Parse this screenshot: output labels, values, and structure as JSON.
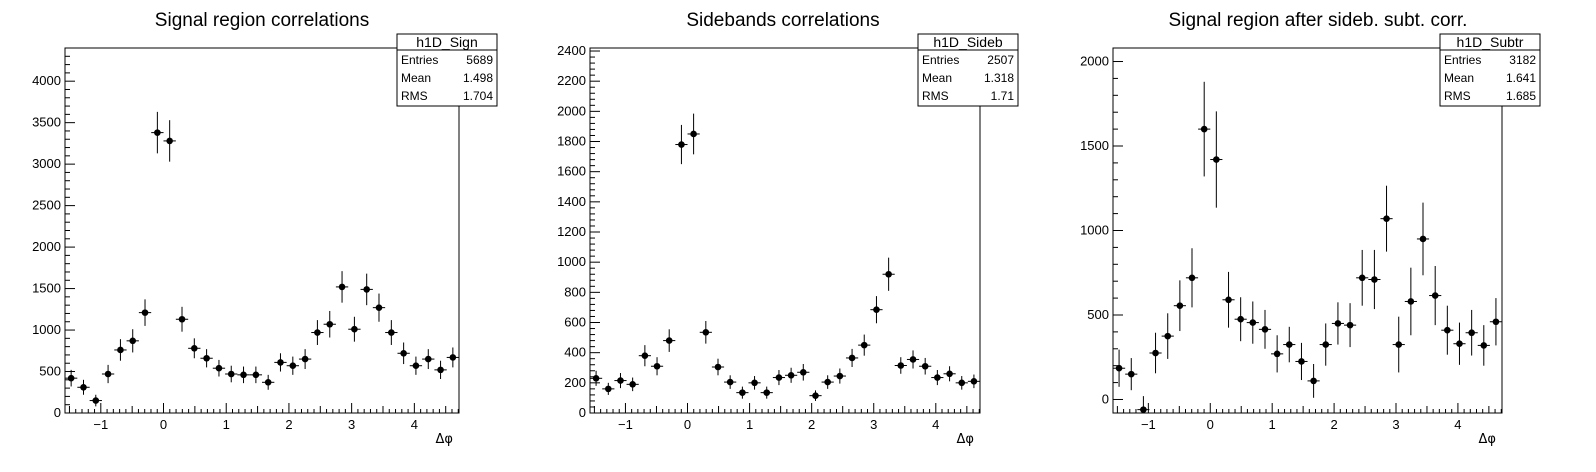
{
  "chart_data": [
    {
      "type": "scatter",
      "title": "Signal region correlations",
      "xlabel": "Δφ",
      "ylabel": "",
      "xlim": [
        -1.571,
        4.712
      ],
      "ylim": [
        0,
        4400
      ],
      "xticks": [
        -1,
        0,
        1,
        2,
        3,
        4
      ],
      "yticks": [
        0,
        500,
        1000,
        1500,
        2000,
        2500,
        3000,
        3500,
        4000
      ],
      "stats": {
        "name": "h1D_Sign",
        "rows": [
          [
            "Entries",
            "5689"
          ],
          [
            "Mean",
            "1.498"
          ],
          [
            "RMS",
            "1.704"
          ]
        ]
      },
      "series": [
        {
          "x": [
            -1.473,
            -1.276,
            -1.08,
            -0.884,
            -0.687,
            -0.491,
            -0.295,
            -0.098,
            0.098,
            0.295,
            0.491,
            0.687,
            0.884,
            1.08,
            1.276,
            1.473,
            1.669,
            1.865,
            2.062,
            2.258,
            2.454,
            2.651,
            2.847,
            3.044,
            3.24,
            3.436,
            3.633,
            3.829,
            4.025,
            4.222,
            4.418,
            4.614
          ],
          "y": [
            420,
            310,
            150,
            470,
            760,
            870,
            1210,
            3380,
            3280,
            1130,
            780,
            660,
            540,
            470,
            460,
            460,
            370,
            610,
            570,
            650,
            970,
            1070,
            1520,
            1010,
            1490,
            1270,
            970,
            720,
            570,
            650,
            520,
            670
          ],
          "err": [
            100,
            90,
            70,
            110,
            130,
            140,
            160,
            250,
            250,
            150,
            120,
            110,
            100,
            100,
            100,
            100,
            90,
            110,
            110,
            120,
            150,
            160,
            190,
            150,
            190,
            170,
            150,
            130,
            110,
            120,
            110,
            120
          ]
        }
      ]
    },
    {
      "type": "scatter",
      "title": "Sidebands correlations",
      "xlabel": "Δφ",
      "ylabel": "",
      "xlim": [
        -1.571,
        4.712
      ],
      "ylim": [
        0,
        2420
      ],
      "xticks": [
        -1,
        0,
        1,
        2,
        3,
        4
      ],
      "yticks": [
        0,
        200,
        400,
        600,
        800,
        1000,
        1200,
        1400,
        1600,
        1800,
        2000,
        2200,
        2400
      ],
      "stats": {
        "name": "h1D_Sideb",
        "rows": [
          [
            "Entries",
            "2507"
          ],
          [
            "Mean",
            "1.318"
          ],
          [
            "RMS",
            "1.71"
          ]
        ]
      },
      "series": [
        {
          "x": [
            -1.473,
            -1.276,
            -1.08,
            -0.884,
            -0.687,
            -0.491,
            -0.295,
            -0.098,
            0.098,
            0.295,
            0.491,
            0.687,
            0.884,
            1.08,
            1.276,
            1.473,
            1.669,
            1.865,
            2.062,
            2.258,
            2.454,
            2.651,
            2.847,
            3.044,
            3.24,
            3.436,
            3.633,
            3.829,
            4.025,
            4.222,
            4.418,
            4.614
          ],
          "y": [
            230,
            160,
            215,
            190,
            380,
            310,
            480,
            1780,
            1850,
            535,
            305,
            205,
            135,
            200,
            135,
            235,
            250,
            270,
            115,
            205,
            245,
            365,
            450,
            685,
            920,
            315,
            355,
            310,
            235,
            260,
            200,
            210
          ],
          "err": [
            50,
            40,
            50,
            45,
            70,
            60,
            75,
            130,
            135,
            75,
            55,
            45,
            40,
            45,
            40,
            50,
            50,
            55,
            35,
            45,
            50,
            60,
            70,
            90,
            110,
            55,
            60,
            55,
            50,
            50,
            45,
            45
          ]
        }
      ]
    },
    {
      "type": "scatter",
      "title": "Signal region after sideb. subt. corr.",
      "xlabel": "Δφ",
      "ylabel": "",
      "xlim": [
        -1.571,
        4.712
      ],
      "ylim": [
        -80,
        2080
      ],
      "xticks": [
        -1,
        0,
        1,
        2,
        3,
        4
      ],
      "yticks": [
        0,
        500,
        1000,
        1500,
        2000
      ],
      "stats": {
        "name": "h1D_Subtr",
        "rows": [
          [
            "Entries",
            "3182"
          ],
          [
            "Mean",
            "1.641"
          ],
          [
            "RMS",
            "1.685"
          ]
        ]
      },
      "series": [
        {
          "x": [
            -1.473,
            -1.276,
            -1.08,
            -0.884,
            -0.687,
            -0.491,
            -0.295,
            -0.098,
            0.098,
            0.295,
            0.491,
            0.687,
            0.884,
            1.08,
            1.276,
            1.473,
            1.669,
            1.865,
            2.062,
            2.258,
            2.454,
            2.651,
            2.847,
            3.044,
            3.24,
            3.436,
            3.633,
            3.829,
            4.025,
            4.222,
            4.418,
            4.614
          ],
          "y": [
            185,
            150,
            -60,
            275,
            375,
            555,
            720,
            1600,
            1420,
            590,
            475,
            455,
            415,
            270,
            325,
            225,
            110,
            325,
            450,
            440,
            720,
            710,
            1070,
            325,
            580,
            950,
            615,
            410,
            330,
            395,
            320,
            460
          ],
          "err": [
            110,
            95,
            80,
            120,
            135,
            150,
            175,
            280,
            285,
            165,
            130,
            125,
            115,
            110,
            105,
            110,
            100,
            125,
            125,
            130,
            165,
            175,
            195,
            165,
            200,
            215,
            175,
            145,
            125,
            135,
            120,
            140
          ]
        }
      ]
    }
  ]
}
